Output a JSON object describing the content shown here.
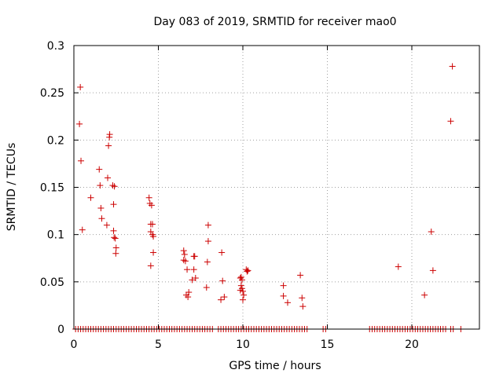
{
  "chart_data": {
    "type": "scatter",
    "title": "Day 083 of 2019, SRMTID for receiver mao0",
    "xlabel": "GPS time / hours",
    "ylabel": "SRMTID / TECUs",
    "xlim": [
      0,
      24
    ],
    "ylim": [
      0,
      0.3
    ],
    "xticks": [
      0,
      5,
      10,
      15,
      20
    ],
    "yticks": [
      0,
      0.05,
      0.1,
      0.15,
      0.2,
      0.25,
      0.3
    ],
    "xtick_labels": [
      "0",
      "5",
      "10",
      "15",
      "20"
    ],
    "ytick_labels": [
      "0",
      "0.05",
      "0.1",
      "0.15",
      "0.2",
      "0.25",
      "0.3"
    ],
    "grid": true,
    "marker": "+",
    "color": "#cc0000",
    "series": [
      {
        "name": "SRMTID",
        "points": [
          [
            0.38,
            0.256
          ],
          [
            0.33,
            0.217
          ],
          [
            0.42,
            0.178
          ],
          [
            0.5,
            0.105
          ],
          [
            1.0,
            0.139
          ],
          [
            1.5,
            0.169
          ],
          [
            1.55,
            0.152
          ],
          [
            1.6,
            0.128
          ],
          [
            1.65,
            0.117
          ],
          [
            1.95,
            0.11
          ],
          [
            2.0,
            0.16
          ],
          [
            2.05,
            0.194
          ],
          [
            2.1,
            0.203
          ],
          [
            2.12,
            0.206
          ],
          [
            2.3,
            0.152
          ],
          [
            2.35,
            0.132
          ],
          [
            2.4,
            0.151
          ],
          [
            2.35,
            0.104
          ],
          [
            2.38,
            0.097
          ],
          [
            2.45,
            0.096
          ],
          [
            2.5,
            0.086
          ],
          [
            2.48,
            0.08
          ],
          [
            4.45,
            0.139
          ],
          [
            4.5,
            0.133
          ],
          [
            4.6,
            0.131
          ],
          [
            4.55,
            0.111
          ],
          [
            4.65,
            0.111
          ],
          [
            4.55,
            0.103
          ],
          [
            4.65,
            0.1
          ],
          [
            4.7,
            0.098
          ],
          [
            4.7,
            0.081
          ],
          [
            4.55,
            0.067
          ],
          [
            6.5,
            0.083
          ],
          [
            6.55,
            0.079
          ],
          [
            6.5,
            0.073
          ],
          [
            6.6,
            0.072
          ],
          [
            6.7,
            0.063
          ],
          [
            6.65,
            0.036
          ],
          [
            6.75,
            0.034
          ],
          [
            6.8,
            0.039
          ],
          [
            7.0,
            0.052
          ],
          [
            7.1,
            0.077
          ],
          [
            7.15,
            0.077
          ],
          [
            7.1,
            0.063
          ],
          [
            7.2,
            0.054
          ],
          [
            7.95,
            0.11
          ],
          [
            7.95,
            0.093
          ],
          [
            7.9,
            0.071
          ],
          [
            7.85,
            0.044
          ],
          [
            8.7,
            0.031
          ],
          [
            8.75,
            0.081
          ],
          [
            8.8,
            0.051
          ],
          [
            8.9,
            0.034
          ],
          [
            9.85,
            0.054
          ],
          [
            9.9,
            0.055
          ],
          [
            9.95,
            0.052
          ],
          [
            9.9,
            0.046
          ],
          [
            9.95,
            0.043
          ],
          [
            9.85,
            0.041
          ],
          [
            10.0,
            0.04
          ],
          [
            10.05,
            0.036
          ],
          [
            10.0,
            0.031
          ],
          [
            10.2,
            0.063
          ],
          [
            10.25,
            0.061
          ],
          [
            10.3,
            0.062
          ],
          [
            12.4,
            0.046
          ],
          [
            12.4,
            0.035
          ],
          [
            12.65,
            0.028
          ],
          [
            13.4,
            0.057
          ],
          [
            13.5,
            0.033
          ],
          [
            13.55,
            0.024
          ],
          [
            19.2,
            0.066
          ],
          [
            20.75,
            0.036
          ],
          [
            21.15,
            0.103
          ],
          [
            21.25,
            0.062
          ],
          [
            22.3,
            0.22
          ],
          [
            22.4,
            0.278
          ]
        ],
        "zero_points": [
          0.1,
          0.25,
          0.4,
          0.55,
          0.7,
          0.85,
          1.0,
          1.15,
          1.3,
          1.45,
          1.6,
          1.75,
          1.9,
          2.05,
          2.2,
          2.35,
          2.5,
          2.65,
          2.8,
          2.95,
          3.1,
          3.25,
          3.4,
          3.55,
          3.7,
          3.85,
          4.0,
          4.15,
          4.3,
          4.45,
          4.6,
          4.75,
          4.9,
          5.05,
          5.2,
          5.35,
          5.5,
          5.65,
          5.8,
          5.95,
          6.1,
          6.25,
          6.4,
          6.55,
          6.7,
          6.85,
          7.0,
          7.15,
          7.3,
          7.45,
          7.6,
          7.75,
          7.9,
          8.05,
          8.2,
          8.55,
          8.7,
          8.85,
          9.0,
          9.15,
          9.3,
          9.45,
          9.6,
          9.75,
          9.9,
          10.05,
          10.2,
          10.35,
          10.5,
          10.65,
          10.8,
          10.95,
          11.1,
          11.25,
          11.4,
          11.55,
          11.7,
          11.85,
          12.0,
          12.15,
          12.3,
          12.45,
          12.6,
          12.75,
          12.9,
          13.05,
          13.2,
          13.35,
          13.5,
          13.65,
          13.8,
          14.75,
          14.9,
          17.5,
          17.65,
          17.8,
          17.95,
          18.1,
          18.25,
          18.4,
          18.55,
          18.7,
          18.85,
          19.0,
          19.15,
          19.3,
          19.45,
          19.6,
          19.75,
          19.9,
          20.05,
          20.2,
          20.35,
          20.5,
          20.65,
          20.8,
          20.95,
          21.1,
          21.25,
          21.4,
          21.55,
          21.7,
          21.85,
          22.0,
          22.3,
          22.45,
          22.9
        ]
      }
    ]
  }
}
